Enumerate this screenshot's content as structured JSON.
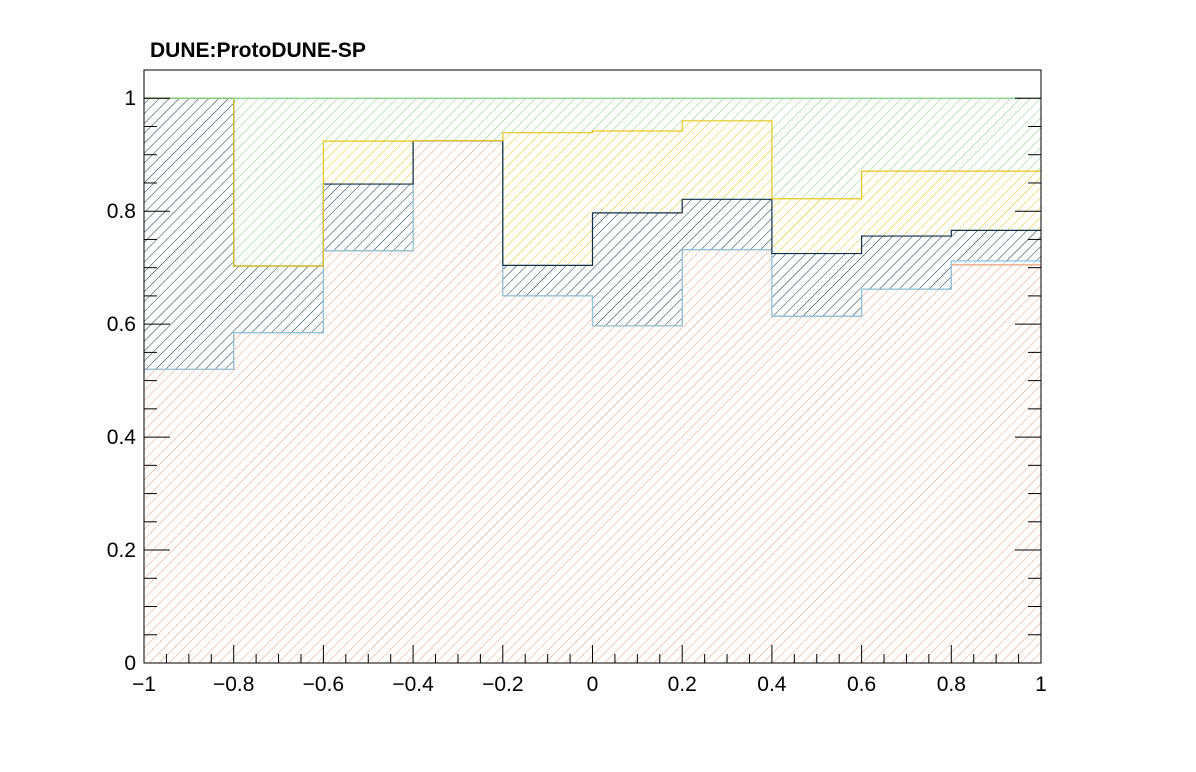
{
  "chart_data": {
    "type": "bar",
    "stacked": true,
    "fill_style": "hatched",
    "title": "DUNE:ProtoDUNE-SP",
    "xlabel": "",
    "ylabel": "",
    "xlim": [
      -1,
      1
    ],
    "ylim": [
      0,
      1.05
    ],
    "grid": false,
    "x_ticks": [
      -1,
      -0.8,
      -0.6,
      -0.4,
      -0.2,
      0,
      0.2,
      0.4,
      0.6,
      0.8,
      1
    ],
    "x_tick_labels": [
      "−1",
      "−0.8",
      "−0.6",
      "−0.4",
      "−0.2",
      "0",
      "0.2",
      "0.4",
      "0.6",
      "0.8",
      "1"
    ],
    "y_ticks": [
      0,
      0.2,
      0.4,
      0.6,
      0.8,
      1
    ],
    "y_tick_labels": [
      "0",
      "0.2",
      "0.4",
      "0.6",
      "0.8",
      "1"
    ],
    "bin_edges": [
      -1,
      -0.8,
      -0.6,
      -0.4,
      -0.2,
      0,
      0.2,
      0.4,
      0.6,
      0.8,
      1
    ],
    "cumulative_series": [
      {
        "color": "#e8a27a",
        "values": [
          0.52,
          0.585,
          0.73,
          0.925,
          0.65,
          0.597,
          0.732,
          0.614,
          0.662,
          0.705
        ]
      },
      {
        "color": "#8ac4df",
        "values": [
          0.52,
          0.585,
          0.73,
          0.925,
          0.65,
          0.597,
          0.732,
          0.614,
          0.662,
          0.712
        ]
      },
      {
        "color": "#0d2f47",
        "values": [
          1.0,
          0.703,
          0.848,
          0.925,
          0.704,
          0.797,
          0.821,
          0.725,
          0.756,
          0.766
        ]
      },
      {
        "color": "#e6c61b",
        "values": [
          1.0,
          0.703,
          0.924,
          0.925,
          0.939,
          0.942,
          0.96,
          0.822,
          0.871,
          0.871
        ]
      },
      {
        "color": "#7fcf83",
        "values": [
          1.0,
          1.0,
          1.0,
          1.0,
          1.0,
          1.0,
          1.0,
          1.0,
          1.0,
          1.0
        ]
      }
    ]
  }
}
